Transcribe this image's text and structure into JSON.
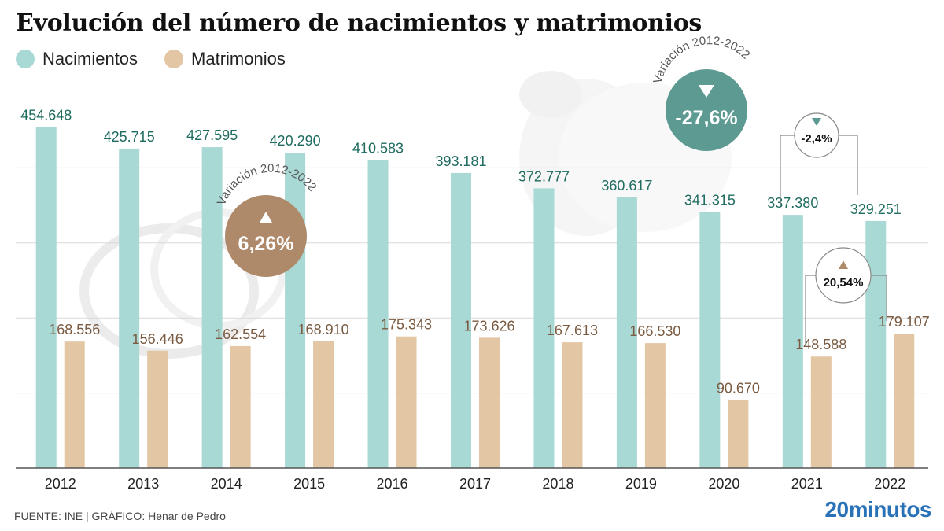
{
  "title": "Evolución del número de nacimientos y matrimonios",
  "footer": {
    "source": "FUENTE: INE",
    "separator": "|",
    "credit": "GRÁFICO: Henar de Pedro",
    "brand": "20minutos"
  },
  "colors": {
    "births": "#a9d9d4",
    "marriages": "#e3c6a3",
    "births_label": "#1f6b60",
    "marriages_label": "#7a5a40",
    "teal_badge": "#5c9a92",
    "brown_badge": "#ae8a6a",
    "grid": "#d9d9d9",
    "axis": "#555555"
  },
  "chart_data": {
    "type": "bar",
    "categories": [
      "2012",
      "2013",
      "2014",
      "2015",
      "2016",
      "2017",
      "2018",
      "2019",
      "2020",
      "2021",
      "2022"
    ],
    "series": [
      {
        "name": "Nacimientos",
        "values": [
          454648,
          425715,
          427595,
          420290,
          410583,
          393181,
          372777,
          360617,
          341315,
          337380,
          329251
        ],
        "labels": [
          "454.648",
          "425.715",
          "427.595",
          "420.290",
          "410.583",
          "393.181",
          "372.777",
          "360.617",
          "341.315",
          "337.380",
          "329.251"
        ]
      },
      {
        "name": "Matrimonios",
        "values": [
          168556,
          156446,
          162554,
          168910,
          175343,
          173626,
          167613,
          166530,
          90670,
          148588,
          179107
        ],
        "labels": [
          "168.556",
          "156.446",
          "162.554",
          "168.910",
          "175.343",
          "173.626",
          "167.613",
          "166.530",
          "90.670",
          "148.588",
          "179.107"
        ]
      }
    ],
    "ylim": [
      0,
      500000
    ],
    "grid": true,
    "legend": "top-left",
    "annotations": {
      "births_variation": {
        "caption": "Variación 2012-2022",
        "value": "-27,6%",
        "direction": "down",
        "icon": "triangle-down-icon"
      },
      "marriages_variation": {
        "caption": "Variación 2012-2022",
        "value": "6,26%",
        "direction": "up",
        "icon": "triangle-up-icon"
      },
      "births_2021_2022": {
        "value": "-2,4%",
        "direction": "down",
        "icon": "triangle-down-icon"
      },
      "marriages_2021_2022": {
        "value": "20,54%",
        "direction": "up",
        "icon": "triangle-up-icon"
      }
    }
  }
}
